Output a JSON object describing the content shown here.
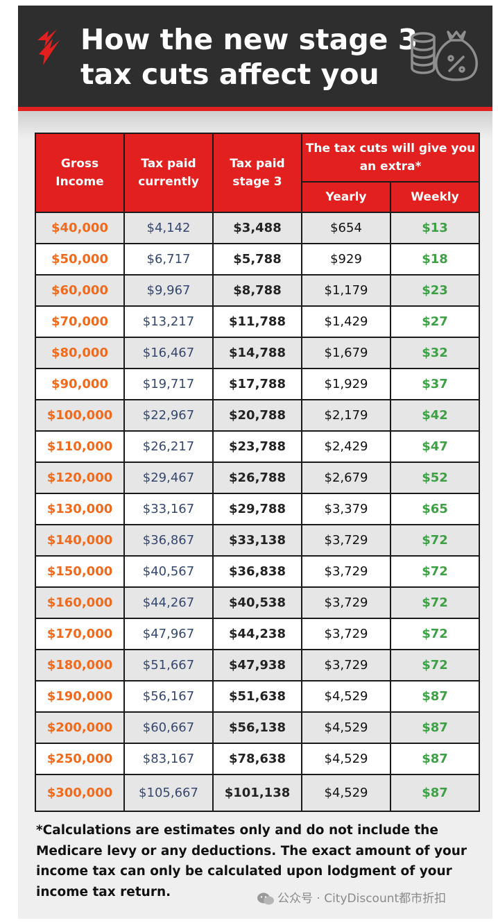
{
  "header": {
    "title_line1": "How the new stage 3",
    "title_line2": "tax cuts affect you"
  },
  "colors": {
    "header_bg": "#2e2e2e",
    "accent_red": "#e1201f",
    "income_orange": "#ef6a1c",
    "current_navy": "#34476e",
    "weekly_green": "#3ea045"
  },
  "icons": {
    "logo": "sbs-logo-icon",
    "money": "coins-money-bag-icon"
  },
  "chart_data": {
    "type": "table",
    "columns": {
      "gross_income": "Gross Income",
      "tax_current": "Tax paid currently",
      "tax_stage3": "Tax paid stage 3",
      "extra_group": "The tax cuts will give you an extra*",
      "yearly": "Yearly",
      "weekly": "Weekly"
    },
    "rows": [
      {
        "income": "$40,000",
        "current": "$4,142",
        "stage3": "$3,488",
        "yearly": "$654",
        "weekly": "$13"
      },
      {
        "income": "$50,000",
        "current": "$6,717",
        "stage3": "$5,788",
        "yearly": "$929",
        "weekly": "$18"
      },
      {
        "income": "$60,000",
        "current": "$9,967",
        "stage3": "$8,788",
        "yearly": "$1,179",
        "weekly": "$23"
      },
      {
        "income": "$70,000",
        "current": "$13,217",
        "stage3": "$11,788",
        "yearly": "$1,429",
        "weekly": "$27"
      },
      {
        "income": "$80,000",
        "current": "$16,467",
        "stage3": "$14,788",
        "yearly": "$1,679",
        "weekly": "$32"
      },
      {
        "income": "$90,000",
        "current": "$19,717",
        "stage3": "$17,788",
        "yearly": "$1,929",
        "weekly": "$37"
      },
      {
        "income": "$100,000",
        "current": "$22,967",
        "stage3": "$20,788",
        "yearly": "$2,179",
        "weekly": "$42"
      },
      {
        "income": "$110,000",
        "current": "$26,217",
        "stage3": "$23,788",
        "yearly": "$2,429",
        "weekly": "$47"
      },
      {
        "income": "$120,000",
        "current": "$29,467",
        "stage3": "$26,788",
        "yearly": "$2,679",
        "weekly": "$52"
      },
      {
        "income": "$130,000",
        "current": "$33,167",
        "stage3": "$29,788",
        "yearly": "$3,379",
        "weekly": "$65"
      },
      {
        "income": "$140,000",
        "current": "$36,867",
        "stage3": "$33,138",
        "yearly": "$3,729",
        "weekly": "$72"
      },
      {
        "income": "$150,000",
        "current": "$40,567",
        "stage3": "$36,838",
        "yearly": "$3,729",
        "weekly": "$72"
      },
      {
        "income": "$160,000",
        "current": "$44,267",
        "stage3": "$40,538",
        "yearly": "$3,729",
        "weekly": "$72"
      },
      {
        "income": "$170,000",
        "current": "$47,967",
        "stage3": "$44,238",
        "yearly": "$3,729",
        "weekly": "$72"
      },
      {
        "income": "$180,000",
        "current": "$51,667",
        "stage3": "$47,938",
        "yearly": "$3,729",
        "weekly": "$72"
      },
      {
        "income": "$190,000",
        "current": "$56,167",
        "stage3": "$51,638",
        "yearly": "$4,529",
        "weekly": "$87"
      },
      {
        "income": "$200,000",
        "current": "$60,667",
        "stage3": "$56,138",
        "yearly": "$4,529",
        "weekly": "$87"
      },
      {
        "income": "$250,000",
        "current": "$83,167",
        "stage3": "$78,638",
        "yearly": "$4,529",
        "weekly": "$87"
      },
      {
        "income": "$300,000",
        "current": "$105,667",
        "stage3": "$101,138",
        "yearly": "$4,529",
        "weekly": "$87"
      }
    ]
  },
  "footnote": "*Calculations are estimates only and do not include the Medicare levy or any deductions.  The exact amount of your income tax can only be calculated upon lodgment of your income tax return.",
  "watermark": {
    "icon": "wechat-icon",
    "text": "公众号 · CityDiscount都市折扣"
  }
}
